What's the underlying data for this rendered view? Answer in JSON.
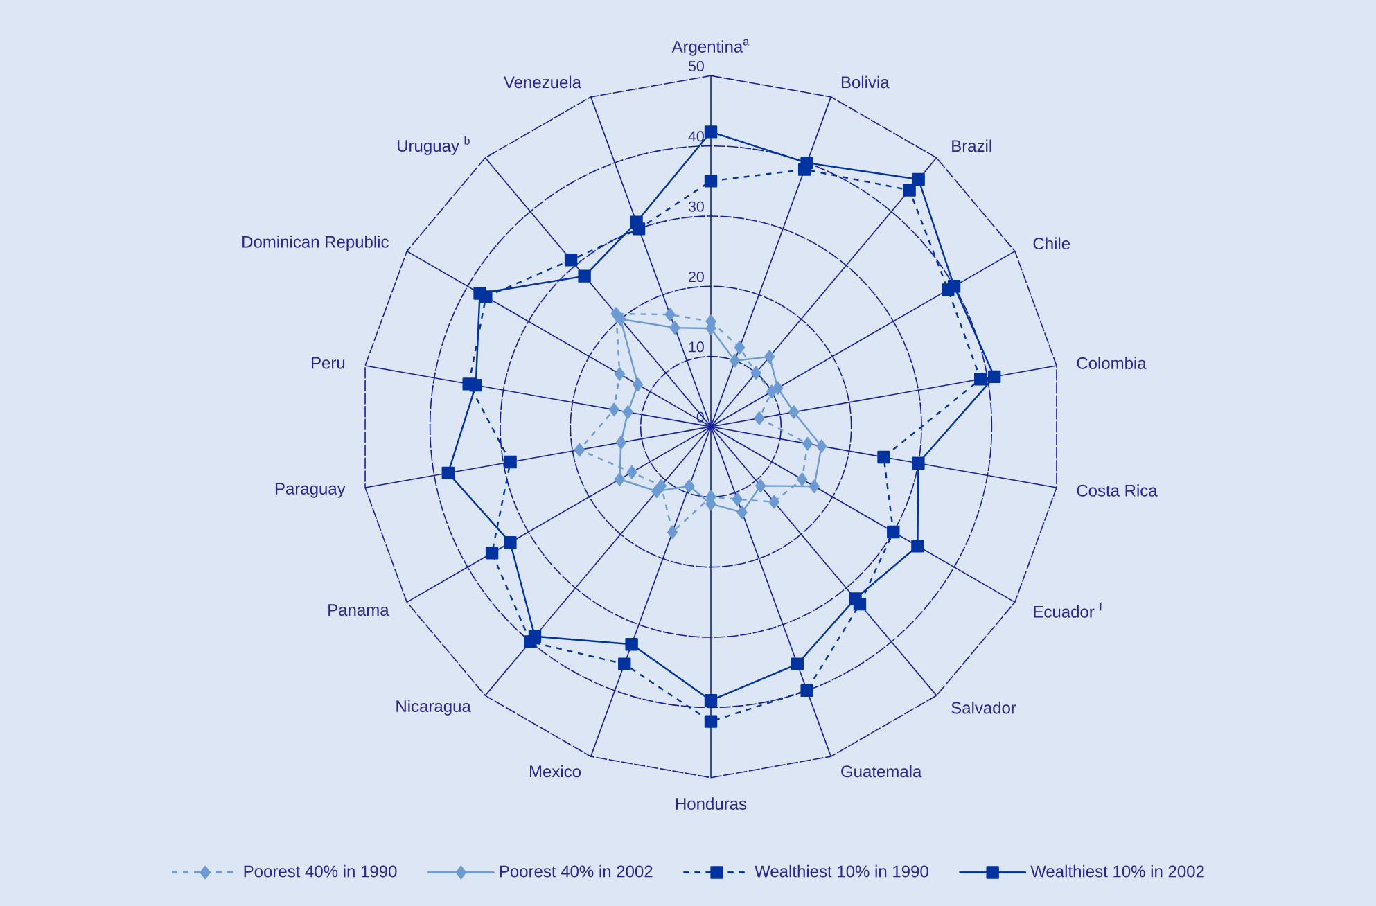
{
  "chart_data": {
    "type": "radar",
    "categories": [
      "Argentina$^{a}$",
      "Bolivia",
      "Brazil",
      "Chile",
      "Colombia",
      "Costa Rica",
      "Ecuador $^{f}$",
      "Salvador",
      "Guatemala",
      "Honduras",
      "Mexico",
      "Nicaragua",
      "Panama",
      "Paraguay",
      "Peru",
      "Dominican Republic",
      "Uruguay $^{b}$",
      "Venezuela"
    ],
    "ylim": [
      0,
      50
    ],
    "yticks": [
      0,
      10,
      20,
      30,
      40,
      50
    ],
    "grid": true,
    "legend": "bottom",
    "series": [
      {
        "name": "Poorest 40% in 1990",
        "color": "#6b9bd2",
        "marker": "diamond",
        "line_style": "dashed",
        "values": [
          15,
          12,
          10,
          10,
          7,
          14,
          15,
          14,
          11,
          10,
          16,
          11,
          13,
          19,
          14,
          15,
          21,
          17
        ]
      },
      {
        "name": "Poorest 40% in 2002",
        "color": "#6b9bd2",
        "marker": "diamond",
        "line_style": "solid",
        "values": [
          14,
          10,
          13,
          11,
          12,
          16,
          17,
          11,
          13,
          11,
          9,
          12,
          15,
          13,
          12,
          12,
          20,
          15
        ]
      },
      {
        "name": "Wealthiest 10% in 1990",
        "color": "#0033a0",
        "marker": "square",
        "line_style": "dashed",
        "values": [
          35,
          39,
          44,
          39,
          39,
          25,
          30,
          33,
          40,
          42,
          36,
          40,
          36,
          29,
          35,
          37,
          31,
          30
        ]
      },
      {
        "name": "Wealthiest 10% in 2002",
        "color": "#0033a0",
        "marker": "square",
        "line_style": "solid",
        "values": [
          42,
          40,
          46,
          40,
          41,
          30,
          34,
          32,
          36,
          39,
          33,
          39,
          33,
          38,
          34,
          38,
          28,
          31
        ]
      }
    ]
  }
}
